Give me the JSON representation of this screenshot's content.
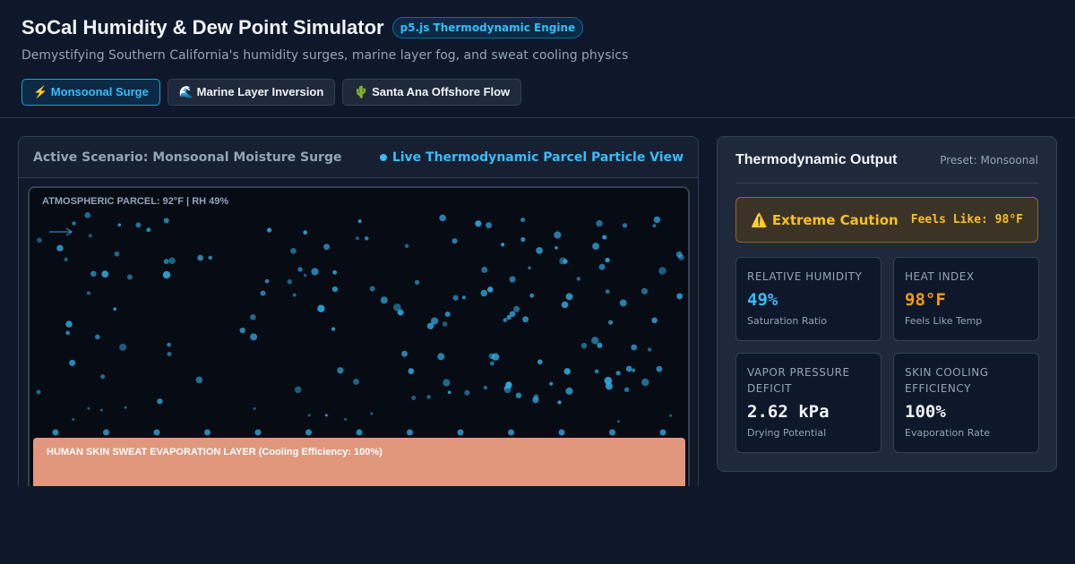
{
  "header": {
    "title": "SoCal Humidity & Dew Point Simulator",
    "badge": "p5.js Thermodynamic Engine",
    "subtitle": "Demystifying Southern California's humidity surges, marine layer fog, and sweat cooling physics",
    "buttons": [
      "⚡ Monsoonal Surge",
      "🌊 Marine Layer Inversion",
      "🌵 Santa Ana Offshore Flow"
    ]
  },
  "simulation": {
    "scenario": "Active Scenario: Monsoonal Moisture Surge",
    "view": "Live Thermodynamic Parcel Particle View",
    "parcel_label": "ATMOSPHERIC PARCEL: 92°F | RH 49%",
    "skin_label": "HUMAN SKIN SWEAT EVAPORATION LAYER (Cooling Efficiency: 100%)"
  },
  "output": {
    "title": "Thermodynamic Output",
    "preset": "Preset: Monsoonal",
    "alert": {
      "status": "⚠️ Extreme Caution",
      "feels_like": "Feels Like: 98°F"
    },
    "cards": [
      {
        "label": "RELATIVE HUMIDITY",
        "value": "49%",
        "note": "Saturation Ratio",
        "color": "#38bdf8"
      },
      {
        "label": "HEAT INDEX",
        "value": "98°F",
        "note": "Feels Like Temp",
        "color": "#f59e0b"
      },
      {
        "label": "VAPOR PRESSURE DEFICIT",
        "value": "2.62 kPa",
        "note": "Drying Potential",
        "color": "#f1f5f9"
      },
      {
        "label": "SKIN COOLING EFFICIENCY",
        "value": "100%",
        "note": "Evaporation Rate",
        "color": "#f1f5f9"
      }
    ]
  }
}
